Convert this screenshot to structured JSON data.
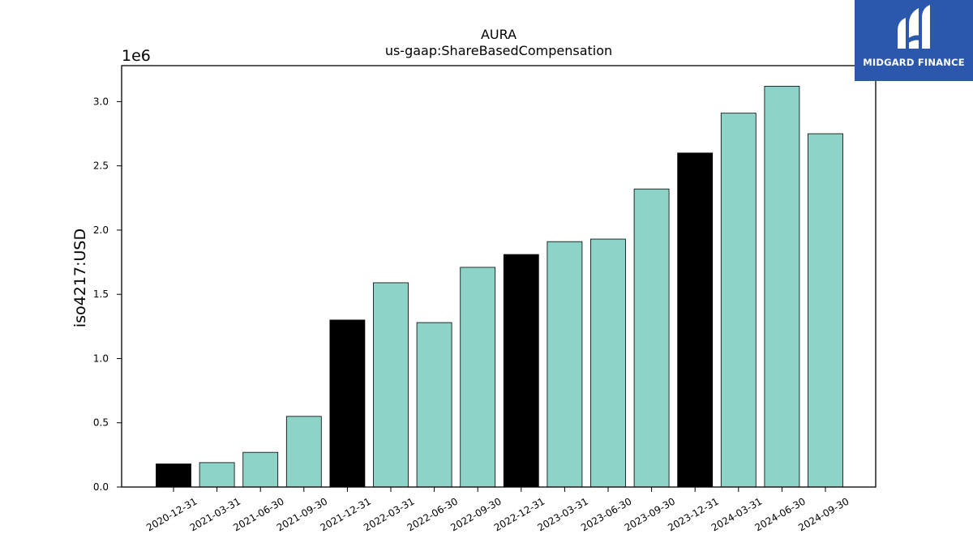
{
  "brand": {
    "name": "MIDGARD FINANCE",
    "logo_color": "#2b58ad"
  },
  "chart_data": {
    "type": "bar",
    "title": "AURA",
    "subtitle": "us-gaap:ShareBasedCompensation",
    "ylabel": "iso4217:USD",
    "xlabel": "",
    "y_scale_label": "1e6",
    "ylim": [
      0,
      3.28
    ],
    "yticks": [
      "0.0",
      "0.5",
      "1.0",
      "1.5",
      "2.0",
      "2.5",
      "3.0"
    ],
    "categories": [
      "2020-12-31",
      "2021-03-31",
      "2021-06-30",
      "2021-09-30",
      "2021-12-31",
      "2022-03-31",
      "2022-06-30",
      "2022-09-30",
      "2022-12-31",
      "2023-03-31",
      "2023-06-30",
      "2023-09-30",
      "2023-12-31",
      "2024-03-31",
      "2024-06-30",
      "2024-09-30"
    ],
    "values": [
      0.18,
      0.19,
      0.27,
      0.55,
      1.3,
      1.59,
      1.28,
      1.71,
      1.81,
      1.91,
      1.93,
      2.32,
      2.6,
      2.91,
      3.12,
      2.75
    ],
    "fiscal_year_end": [
      true,
      false,
      false,
      false,
      true,
      false,
      false,
      false,
      true,
      false,
      false,
      false,
      true,
      false,
      false,
      false
    ],
    "colors": {
      "quarter": "#8dd3c7",
      "year_end": "#000000"
    },
    "grid": false,
    "legend": "none"
  }
}
